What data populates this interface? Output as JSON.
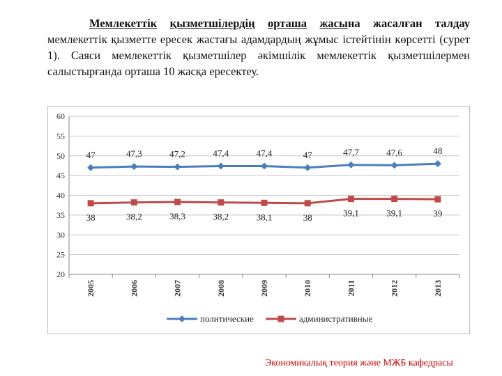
{
  "text": {
    "title_underlined_1": "Мемлекеттік",
    "title_underlined_2": "қызметшілердің",
    "title_underlined_3": "орташа",
    "title_underlined_4": "жасы",
    "title_rest": "на жасалған талдау",
    "body": "мемлекеттік қызметте ересек жастағы адамдардың жұмыс істейтінін көрсетті (сурет 1). Саяси мемлекеттік қызметшілер әкімшілік мемлекеттік қызметшілермен салыстырғанда орташа 10 жасқа ересектеу."
  },
  "footer": "Экономикалық теория және МЖБ кафедрасы",
  "chart_data": {
    "type": "line",
    "title": "",
    "xlabel": "",
    "ylabel": "",
    "categories": [
      "2005",
      "2006",
      "2007",
      "2008",
      "2009",
      "2010",
      "2011",
      "2012",
      "2013"
    ],
    "ylim": [
      20,
      60
    ],
    "yticks": [
      20,
      25,
      30,
      35,
      40,
      45,
      50,
      55,
      60
    ],
    "grid": true,
    "legend_position": "bottom",
    "series": [
      {
        "name": "политические",
        "color": "#4a7ebb",
        "marker": "diamond",
        "values": [
          47,
          47.3,
          47.2,
          47.4,
          47.4,
          47,
          47.7,
          47.6,
          48
        ],
        "labels": [
          "47",
          "47,3",
          "47,2",
          "47,4",
          "47,4",
          "47",
          "47,7",
          "47,6",
          "48"
        ]
      },
      {
        "name": "административные",
        "color": "#be4b48",
        "marker": "square",
        "values": [
          38,
          38.2,
          38.3,
          38.2,
          38.1,
          38,
          39.1,
          39.1,
          39
        ],
        "labels": [
          "38",
          "38,2",
          "38,3",
          "38,2",
          "38,1",
          "38",
          "39,1",
          "39,1",
          "39"
        ]
      }
    ]
  }
}
